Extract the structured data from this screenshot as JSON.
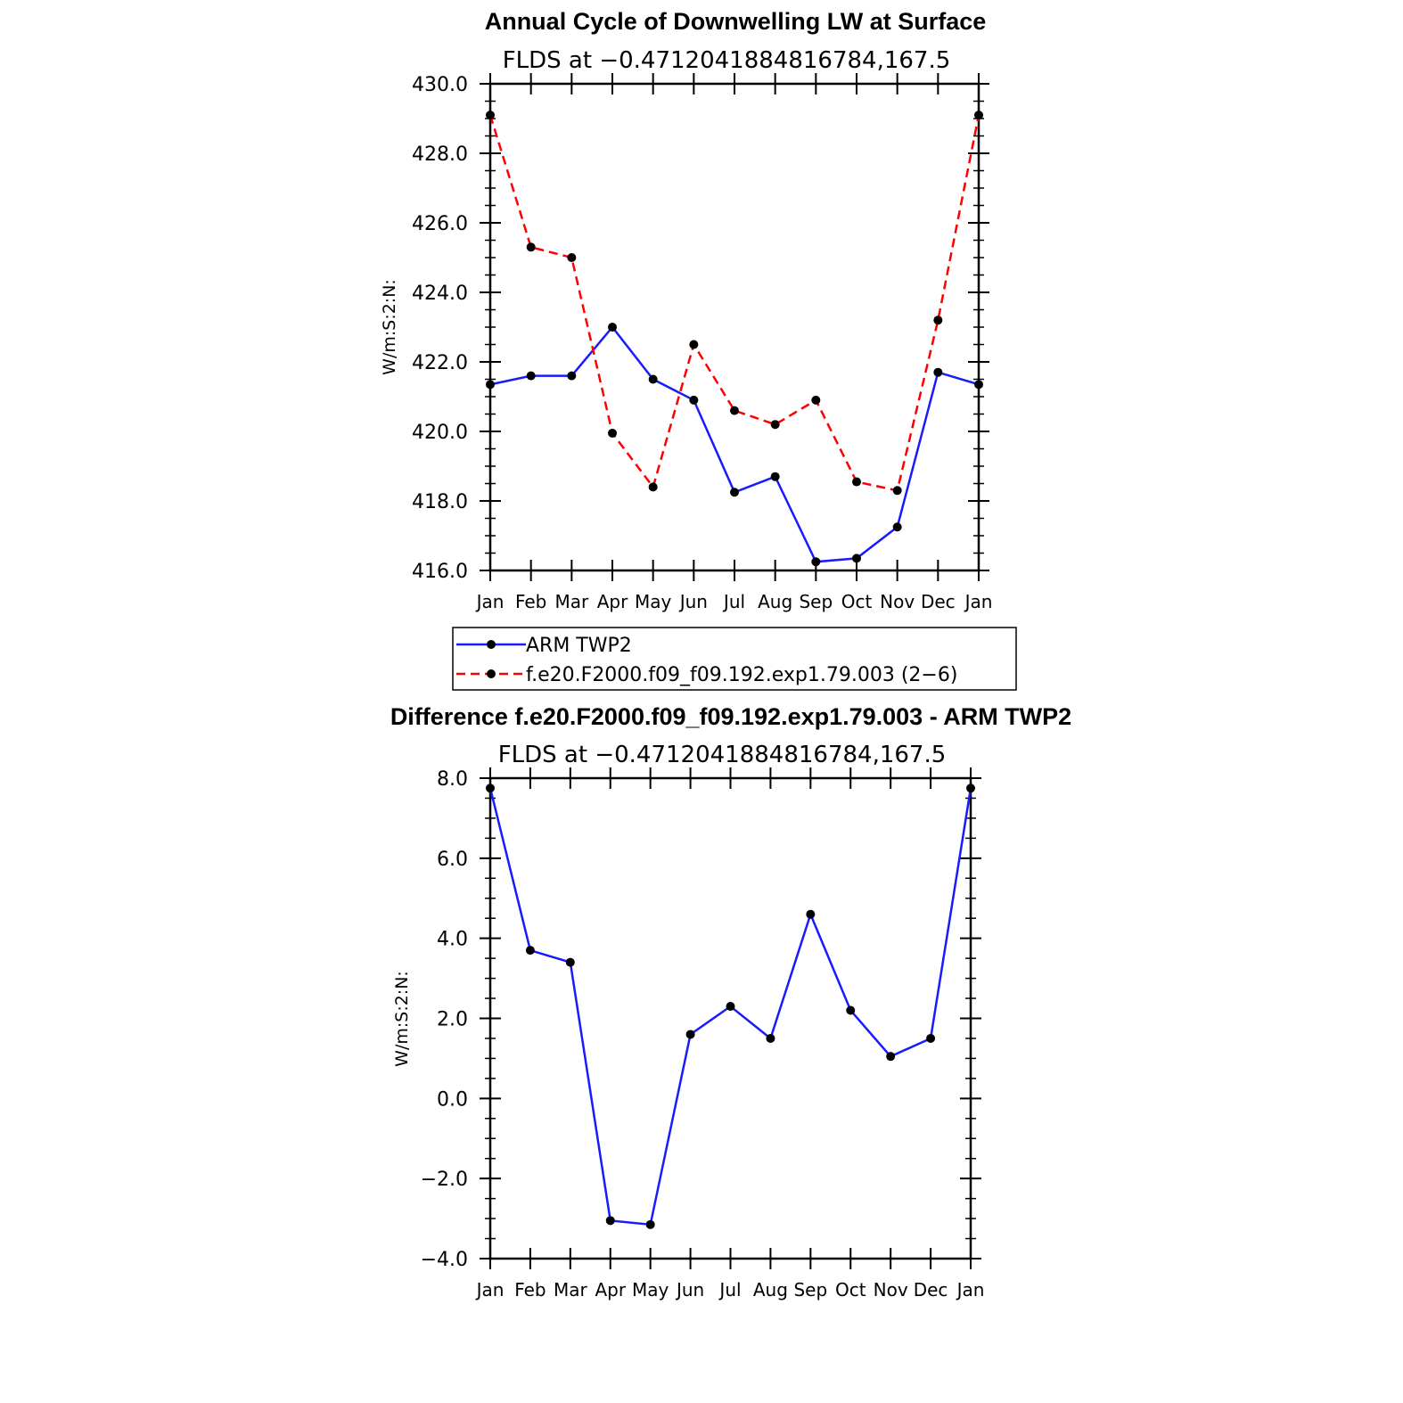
{
  "charts": [
    {
      "title": "Annual Cycle of Downwelling LW at Surface",
      "subtitle": "FLDS at −0.4712041884816784,167.5",
      "ylabel": "W/m:S:2:N:",
      "ytick_labels": [
        "430.0",
        "428.0",
        "426.0",
        "424.0",
        "422.0",
        "420.0",
        "418.0",
        "416.0"
      ],
      "xtick_labels": [
        "Jan",
        "Feb",
        "Mar",
        "Apr",
        "May",
        "Jun",
        "Jul",
        "Aug",
        "Sep",
        "Oct",
        "Nov",
        "Dec",
        "Jan"
      ]
    },
    {
      "title": "Difference f.e20.F2000.f09_f09.192.exp1.79.003 - ARM TWP2",
      "subtitle": "FLDS at −0.4712041884816784,167.5",
      "ylabel": "W/m:S:2:N:",
      "ytick_labels": [
        "8.0",
        "6.0",
        "4.0",
        "2.0",
        "0.0",
        "−2.0",
        "−4.0"
      ],
      "xtick_labels": [
        "Jan",
        "Feb",
        "Mar",
        "Apr",
        "May",
        "Jun",
        "Jul",
        "Aug",
        "Sep",
        "Oct",
        "Nov",
        "Dec",
        "Jan"
      ]
    }
  ],
  "legend": {
    "entries": [
      {
        "label": "ARM TWP2",
        "color": "#1a1aff",
        "dash": "solid"
      },
      {
        "label": "f.e20.F2000.f09_f09.192.exp1.79.003 (2−6)",
        "color": "#ff0000",
        "dash": "dashed"
      }
    ]
  },
  "chart_data": [
    {
      "type": "line",
      "categories": [
        "Jan",
        "Feb",
        "Mar",
        "Apr",
        "May",
        "Jun",
        "Jul",
        "Aug",
        "Sep",
        "Oct",
        "Nov",
        "Dec",
        "Jan"
      ],
      "ylim": [
        416.0,
        430.0
      ],
      "series": [
        {
          "name": "ARM TWP2",
          "color": "#1a1aff",
          "marker": "dot",
          "values": [
            421.35,
            421.6,
            421.6,
            423.0,
            421.5,
            420.9,
            418.25,
            418.7,
            416.25,
            416.35,
            417.25,
            421.7,
            421.35
          ]
        },
        {
          "name": "f.e20.F2000.f09_f09.192.exp1.79.003 (2−6)",
          "color": "#ff0000",
          "dash": "dashed",
          "marker": "dot",
          "values": [
            429.1,
            425.3,
            425.0,
            419.95,
            418.4,
            422.5,
            420.6,
            420.2,
            420.9,
            418.55,
            418.3,
            423.2,
            429.1
          ]
        }
      ]
    },
    {
      "type": "line",
      "categories": [
        "Jan",
        "Feb",
        "Mar",
        "Apr",
        "May",
        "Jun",
        "Jul",
        "Aug",
        "Sep",
        "Oct",
        "Nov",
        "Dec",
        "Jan"
      ],
      "ylim": [
        -4.0,
        8.0
      ],
      "series": [
        {
          "color": "#1a1aff",
          "marker": "dot",
          "values": [
            7.75,
            3.7,
            3.4,
            -3.05,
            -3.15,
            1.6,
            2.3,
            1.5,
            4.6,
            2.2,
            1.05,
            1.5,
            7.75
          ]
        }
      ]
    }
  ]
}
